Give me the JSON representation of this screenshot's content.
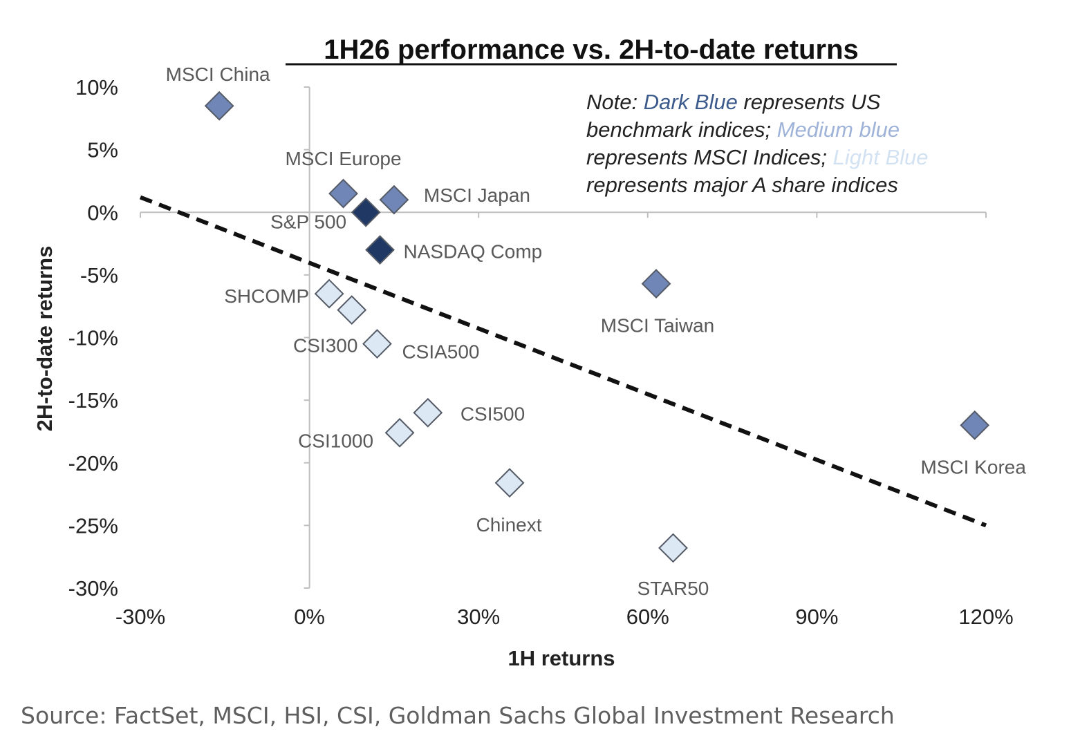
{
  "colors": {
    "us_benchmark": "#1f3864",
    "msci": "#6f86b6",
    "a_share": "#dde8f5",
    "trendline": "#111111",
    "axis": "#bfbfbf"
  },
  "chart_data": {
    "type": "scatter",
    "title": "1H26 performance vs. 2H-to-date returns",
    "xlabel": "1H returns",
    "ylabel": "2H-to-date returns",
    "xlim": [
      -30,
      120
    ],
    "ylim": [
      -30,
      10
    ],
    "x_ticks": [
      -30,
      0,
      30,
      60,
      90,
      120
    ],
    "x_tick_labels": [
      "-30%",
      "0%",
      "30%",
      "60%",
      "90%",
      "120%"
    ],
    "y_ticks": [
      10,
      5,
      0,
      -5,
      -10,
      -15,
      -20,
      -25,
      -30
    ],
    "y_tick_labels": [
      "10%",
      "5%",
      "0%",
      "-5%",
      "-10%",
      "-15%",
      "-20%",
      "-25%",
      "-30%"
    ],
    "grid": false,
    "marker": "diamond",
    "series": [
      {
        "group": "us_benchmark",
        "points": [
          {
            "label": "S&P 500",
            "x": 10,
            "y": 0
          },
          {
            "label": "NASDAQ Comp",
            "x": 12.5,
            "y": -3
          }
        ]
      },
      {
        "group": "msci",
        "points": [
          {
            "label": "MSCI China",
            "x": -16,
            "y": 8.5
          },
          {
            "label": "MSCI Europe",
            "x": 6,
            "y": 1.5
          },
          {
            "label": "MSCI Japan",
            "x": 15,
            "y": 1
          },
          {
            "label": "MSCI Taiwan",
            "x": 61.5,
            "y": -5.7
          },
          {
            "label": "MSCI Korea",
            "x": 118,
            "y": -17
          }
        ]
      },
      {
        "group": "a_share",
        "points": [
          {
            "label": "SHCOMP",
            "x": 3.5,
            "y": -6.5
          },
          {
            "label": "",
            "x": 7.5,
            "y": -7.8
          },
          {
            "label": "CSI300",
            "x": 12,
            "y": -10.5
          },
          {
            "label": "CSIA500",
            "x": 12,
            "y": -10.5
          },
          {
            "label": "CSI500",
            "x": 21,
            "y": -16
          },
          {
            "label": "CSI1000",
            "x": 16,
            "y": -17.6
          },
          {
            "label": "Chinext",
            "x": 35.5,
            "y": -21.6
          },
          {
            "label": "STAR50",
            "x": 64.5,
            "y": -26.8
          }
        ]
      }
    ],
    "trendline": {
      "style": "dashed",
      "from": {
        "x": -30,
        "y": 1.2
      },
      "to": {
        "x": 120,
        "y": -25
      }
    },
    "note": {
      "prefix": "Note: ",
      "dark": "Dark Blue",
      "text1": " represents US benchmark indices; ",
      "medium": "Medium blue",
      "text2": " represents MSCI Indices; ",
      "light": "Light Blue",
      "text3": " represents major A share indices"
    }
  },
  "source": "Source: FactSet, MSCI, HSI, CSI, Goldman Sachs Global Investment Research"
}
